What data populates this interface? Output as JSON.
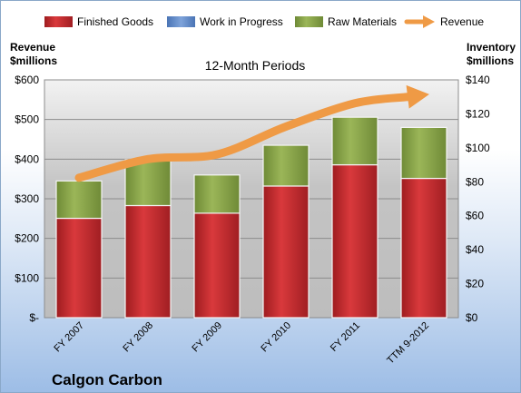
{
  "chart_data": {
    "type": "bar",
    "title": "12-Month Periods",
    "company": "Calgon Carbon",
    "categories": [
      "FY 2007",
      "FY 2008",
      "FY 2009",
      "FY 2010",
      "FY 2011",
      "TTM 9-2012"
    ],
    "legend": [
      "Finished Goods",
      "Work in Progress",
      "Raw Materials",
      "Revenue"
    ],
    "y_left": {
      "label_line1": "Revenue",
      "label_line2": "$millions",
      "ticks": [
        "$-",
        "$100",
        "$200",
        "$300",
        "$400",
        "$500",
        "$600"
      ],
      "range": [
        0,
        600
      ]
    },
    "y_right": {
      "label_line1": "Inventory",
      "label_line2": "$millions",
      "ticks": [
        "$0",
        "$20",
        "$40",
        "$60",
        "$80",
        "$100",
        "$120",
        "$140"
      ],
      "range": [
        0,
        140
      ]
    },
    "series": [
      {
        "name": "Finished Goods",
        "axis": "right",
        "values": [
          58.5,
          66,
          61.5,
          77.5,
          90,
          82
        ]
      },
      {
        "name": "Work in Progress",
        "axis": "right",
        "values": [
          0,
          0,
          0,
          0,
          0,
          0
        ]
      },
      {
        "name": "Raw Materials",
        "axis": "right",
        "values": [
          22,
          27,
          22.5,
          24,
          28,
          30
        ]
      },
      {
        "name": "Revenue",
        "axis": "left",
        "type": "line",
        "values": [
          353,
          400,
          412,
          482,
          541,
          562
        ]
      }
    ],
    "colors": {
      "finished_goods": "#c0262a",
      "work_in_progress": "#5b87c5",
      "raw_materials": "#8aa547",
      "revenue": "#ef9a45"
    },
    "grid": true,
    "legend_position": "top"
  }
}
